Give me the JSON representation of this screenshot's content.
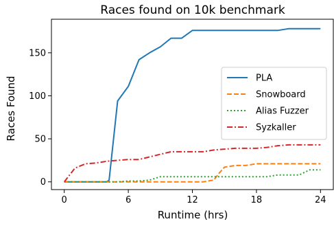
{
  "chart_data": {
    "type": "line",
    "title": "Races found on 10k benchmark",
    "xlabel": "Runtime (hrs)",
    "ylabel": "Races Found",
    "xlim": [
      -1.2,
      25.2
    ],
    "ylim": [
      -9,
      189
    ],
    "xticks": [
      0,
      6,
      12,
      18,
      24
    ],
    "yticks": [
      0,
      50,
      100,
      150
    ],
    "grid": false,
    "legend_position": "center-right",
    "series": [
      {
        "name": "PLA",
        "color": "#1f77b4",
        "style": "solid",
        "x": [
          0,
          4,
          4.2,
          5,
          6,
          7,
          8,
          9,
          10,
          11,
          12,
          13,
          14,
          15,
          16,
          17,
          18,
          19,
          20,
          21,
          22,
          23,
          24
        ],
        "y": [
          0,
          0,
          2,
          94,
          111,
          142,
          150,
          157,
          167,
          167,
          176,
          176,
          176,
          176,
          176,
          176,
          176,
          176,
          176,
          178,
          178,
          178,
          178
        ]
      },
      {
        "name": "Snowboard",
        "color": "#ff7f0e",
        "style": "dashed",
        "x": [
          0,
          12,
          13,
          14,
          14.5,
          15,
          16,
          17,
          18,
          19,
          20,
          21,
          22,
          23,
          24
        ],
        "y": [
          0,
          0,
          0,
          2,
          10,
          17,
          19,
          19,
          21,
          21,
          21,
          21,
          21,
          21,
          21
        ]
      },
      {
        "name": "Alias Fuzzer",
        "color": "#2ca02c",
        "style": "dotted",
        "x": [
          0,
          5,
          6,
          7,
          8,
          9,
          10,
          11,
          12,
          13,
          14,
          15,
          16,
          17,
          18,
          19,
          20,
          21,
          22,
          23,
          24
        ],
        "y": [
          0,
          0,
          1,
          1,
          2,
          6,
          6,
          6,
          6,
          6,
          6,
          6,
          6,
          6,
          6,
          6,
          8,
          8,
          8,
          14,
          14
        ]
      },
      {
        "name": "Syzkaller",
        "color": "#d62728",
        "style": "dashdot",
        "x": [
          0,
          1,
          2,
          3,
          4,
          5,
          6,
          7,
          8,
          9,
          10,
          11,
          12,
          13,
          14,
          15,
          16,
          17,
          18,
          19,
          20,
          21,
          22,
          23,
          24
        ],
        "y": [
          0,
          16,
          21,
          22,
          24,
          25,
          26,
          26,
          29,
          32,
          35,
          35,
          35,
          35,
          37,
          38,
          39,
          39,
          39,
          40,
          42,
          43,
          43,
          43,
          43
        ]
      }
    ]
  }
}
